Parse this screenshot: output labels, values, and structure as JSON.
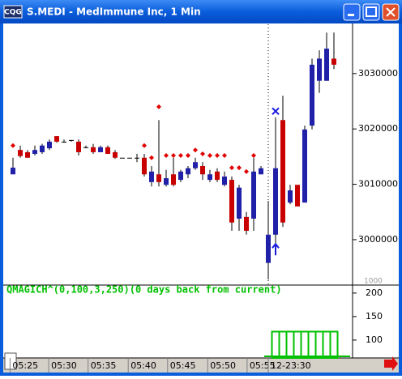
{
  "window": {
    "title": "S.MEDI - MedImmune Inc, 1 Min"
  },
  "chart_data": [
    {
      "type": "candlestick",
      "categories": [
        null,
        null,
        null,
        null,
        null,
        null,
        null,
        null,
        null,
        null,
        null,
        null,
        null,
        null,
        null,
        null,
        null,
        null,
        null,
        null,
        null,
        null,
        null,
        null,
        null,
        null,
        null,
        null,
        null,
        null,
        null,
        null,
        null,
        null,
        null,
        null,
        null,
        null,
        null,
        null,
        null,
        null,
        null,
        null,
        null
      ],
      "open": [
        3011800,
        3016200,
        3015800,
        3015500,
        3015800,
        3016500,
        3018700,
        3017700,
        3018000,
        3017700,
        3016700,
        3016700,
        3015800,
        3016700,
        3015800,
        3014800,
        3014800,
        3014800,
        3014800,
        3010400,
        3011800,
        3009900,
        3011800,
        3010800,
        3011800,
        3012900,
        3013300,
        3010800,
        3012300,
        3009900,
        3010800,
        3003800,
        3004100,
        3003800,
        3011800,
        2995800,
        3000900,
        3021600,
        3006700,
        3009900,
        3006700,
        3020600,
        3028700,
        3028700,
        3032700
      ],
      "high": [
        3014800,
        3017000,
        3016200,
        3017000,
        3017300,
        3018100,
        3018700,
        3018100,
        3018000,
        3018100,
        3017000,
        3017300,
        3017000,
        3017000,
        3016200,
        3014800,
        3014800,
        3015500,
        3015500,
        3013300,
        3021600,
        3012600,
        3014800,
        3012600,
        3013300,
        3014800,
        3014000,
        3012600,
        3012900,
        3012300,
        3011400,
        3009900,
        3005000,
        3014800,
        3013300,
        3007000,
        3022100,
        3026000,
        3009900,
        3009900,
        3020600,
        3032700,
        3034200,
        3037400,
        3037400
      ],
      "low": [
        3011800,
        3014800,
        3014800,
        3015200,
        3015500,
        3016200,
        3017500,
        3017500,
        3017700,
        3015200,
        3016500,
        3015500,
        3015800,
        3015500,
        3014600,
        3014800,
        3014800,
        3014000,
        3011400,
        3009600,
        3009600,
        3009600,
        3009600,
        3010400,
        3011100,
        3012600,
        3010800,
        3010400,
        3010400,
        3009600,
        3001600,
        3001600,
        3000900,
        3001600,
        3011800,
        2992800,
        2999400,
        3002300,
        3006400,
        3006000,
        3006700,
        3019900,
        3026500,
        3028700,
        3030800
      ],
      "close": [
        3013000,
        3015100,
        3014800,
        3016200,
        3017000,
        3017700,
        3017700,
        3017700,
        3018000,
        3015800,
        3016700,
        3015800,
        3016700,
        3015500,
        3014800,
        3014800,
        3014800,
        3014800,
        3011800,
        3012300,
        3010400,
        3011100,
        3009900,
        3012300,
        3012900,
        3014000,
        3011800,
        3011800,
        3010800,
        3011400,
        3003100,
        3009400,
        3001600,
        3012300,
        3012900,
        3000900,
        3012900,
        3003100,
        3008900,
        3006000,
        3019900,
        3031600,
        3032700,
        3034500,
        3031600
      ],
      "up_color": "#2020a8",
      "down_color": "#c80000",
      "markers": {
        "color": "#e00000",
        "values": [
          3017000,
          null,
          null,
          null,
          null,
          null,
          null,
          null,
          null,
          null,
          null,
          null,
          null,
          null,
          null,
          null,
          null,
          null,
          3017000,
          3014800,
          3024000,
          3015200,
          3015200,
          3015200,
          3015200,
          3016200,
          3015500,
          3015200,
          3015200,
          3015200,
          3013000,
          3013000,
          3012300,
          3015200,
          null,
          null,
          null,
          null,
          null,
          null,
          null,
          null,
          null,
          null,
          null
        ]
      },
      "signals": [
        {
          "shape": "x",
          "x": 36,
          "value": 3023200,
          "color": "#1a1ae0"
        },
        {
          "shape": "arrow",
          "x": 36,
          "value": 2998200,
          "color": "#1a1ae0"
        }
      ],
      "annotation": "1000",
      "ylim": [
        2991800,
        3038900
      ],
      "yticks": [
        3000000,
        3010000,
        3020000,
        3030000
      ],
      "xticks": [
        {
          "value": -0.4,
          "label": "05:25"
        },
        {
          "value": 4.9,
          "label": "05:30"
        },
        {
          "value": 10.3,
          "label": "05:35"
        },
        {
          "value": 15.8,
          "label": "05:40"
        },
        {
          "value": 21.2,
          "label": "05:45"
        },
        {
          "value": 26.7,
          "label": "05:50"
        },
        {
          "value": 32.1,
          "label": "05:55"
        },
        {
          "value": 35,
          "label": "12-23:30"
        }
      ]
    },
    {
      "type": "bar",
      "title": "QMAGICH^(0,100,3,250)(0 days back from current)",
      "values": [
        null,
        null,
        null,
        null,
        null,
        null,
        null,
        null,
        null,
        null,
        null,
        null,
        null,
        null,
        null,
        null,
        null,
        null,
        null,
        null,
        null,
        null,
        null,
        null,
        null,
        null,
        null,
        null,
        null,
        null,
        null,
        null,
        null,
        null,
        null,
        null,
        118,
        118,
        118,
        118,
        118,
        118,
        118,
        118,
        118
      ],
      "color": "#00c000",
      "ylim": [
        62,
        217
      ],
      "yticks": [
        100,
        150,
        200
      ]
    }
  ]
}
